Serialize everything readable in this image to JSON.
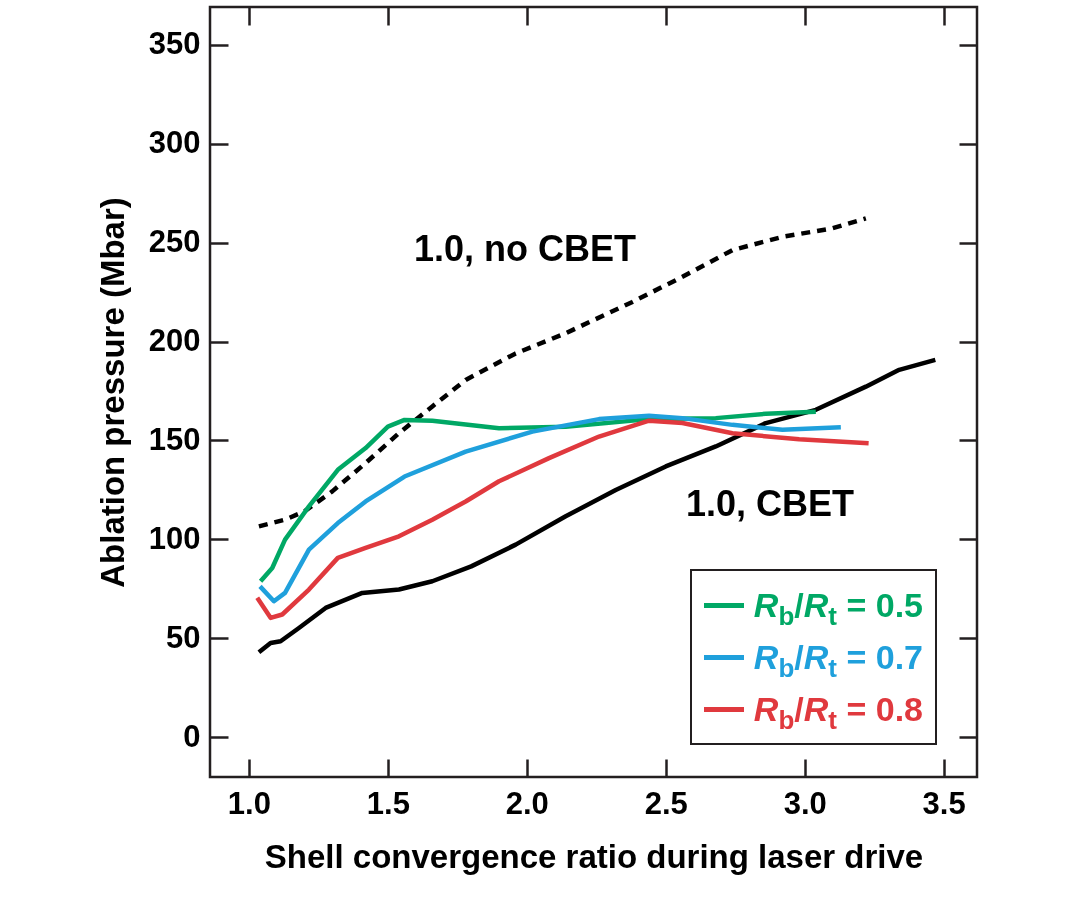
{
  "chart_data": {
    "type": "line",
    "xlabel": "Shell convergence ratio during laser drive",
    "ylabel": "Ablation pressure (Mbar)",
    "xlim": [
      0.86,
      3.62
    ],
    "ylim": [
      -20,
      369
    ],
    "xticks": [
      {
        "value": 1,
        "label": "1.0"
      },
      1.5,
      {
        "value": 2,
        "label": "2.0"
      },
      2.5,
      {
        "value": 3,
        "label": "3.0"
      },
      3.5
    ],
    "yticks": [
      0,
      50,
      100,
      150,
      200,
      250,
      300,
      350
    ],
    "grid": false,
    "legend": "bottom right",
    "series": [
      {
        "color": "#000000",
        "line_style": "solid",
        "x": [
          1.036,
          1.078,
          1.114,
          1.18,
          1.276,
          1.408,
          1.54,
          1.66,
          1.8,
          1.96,
          2.14,
          2.32,
          2.5,
          2.68,
          2.86,
          3.04,
          3.22,
          3.34,
          3.47
        ],
        "values": [
          43,
          47.7,
          48.6,
          55.3,
          65.4,
          73,
          74.7,
          78.9,
          86.4,
          97.4,
          111.7,
          125,
          136.9,
          147,
          158.8,
          165.5,
          177.2,
          185.7,
          190.7
        ]
      },
      {
        "color": "#000000",
        "line_style": "dotted",
        "x": [
          1.036,
          1.13,
          1.2,
          1.3,
          1.42,
          1.54,
          1.66,
          1.78,
          1.96,
          2.14,
          2.38,
          2.56,
          2.74,
          2.92,
          3.1,
          3.22
        ],
        "values": [
          106.6,
          110,
          114.2,
          124.3,
          138.6,
          153.7,
          167.2,
          180.6,
          194,
          204.2,
          220,
          232.7,
          246.2,
          252.9,
          257.2,
          262.2
        ]
      },
      {
        "name": "R$_{b}$/R$_{t}$ = 0.5",
        "color": "#00a865",
        "line_style": "solid",
        "x": [
          1.042,
          1.084,
          1.13,
          1.216,
          1.32,
          1.42,
          1.5,
          1.56,
          1.66,
          1.9,
          2.14,
          2.44,
          2.68,
          2.86,
          3.04
        ],
        "values": [
          78.9,
          85.6,
          99.9,
          116.7,
          135.2,
          146.2,
          157,
          160.4,
          160,
          156.2,
          157,
          160.8,
          161.3,
          163.5,
          164.5
        ]
      },
      {
        "name": "R$_{b}$/R$_{t}$ = 0.7",
        "color": "#1fa0dc",
        "line_style": "solid",
        "x": [
          1.04,
          1.09,
          1.13,
          1.216,
          1.32,
          1.42,
          1.56,
          1.78,
          2.02,
          2.26,
          2.44,
          2.56,
          2.74,
          2.92,
          3.13
        ],
        "values": [
          76.3,
          68.8,
          73,
          94.9,
          108.3,
          119.2,
          131.8,
          144.4,
          154.5,
          160.8,
          162.5,
          161.3,
          157.9,
          155.4,
          156.7
        ]
      },
      {
        "name": "R$_{b}$/R$_{t}$ = 0.8",
        "color": "#e0393e",
        "line_style": "solid",
        "x": [
          1.03,
          1.078,
          1.12,
          1.216,
          1.32,
          1.42,
          1.54,
          1.66,
          1.78,
          1.9,
          2.08,
          2.26,
          2.44,
          2.56,
          2.74,
          2.98,
          3.23
        ],
        "values": [
          70.5,
          60.4,
          62.1,
          74.7,
          90.7,
          95.7,
          101.6,
          110,
          119.2,
          129.4,
          141.1,
          152,
          160,
          158.8,
          153.7,
          150.6,
          148.6
        ]
      }
    ],
    "annotations": [
      "1.0, no CBET",
      "1.0, CBET"
    ]
  }
}
